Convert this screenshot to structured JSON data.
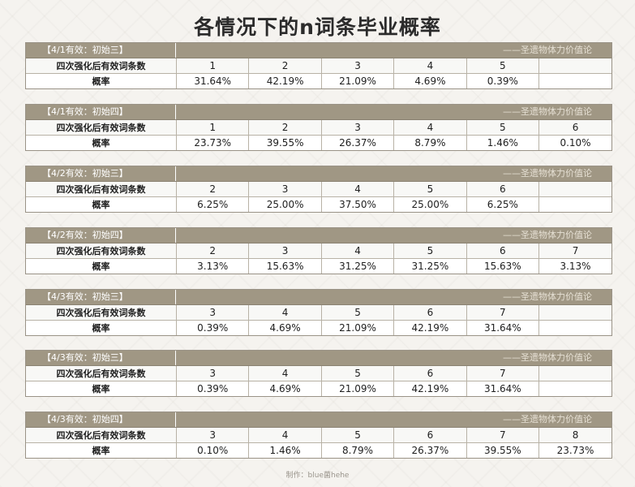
{
  "title": "各情况下的n词条毕业概率",
  "credit": "——圣遗物体力价值论",
  "row_labels": {
    "count": "四次强化后有效词条数",
    "prob": "概率"
  },
  "blocks": [
    {
      "label": "【4/1有效：初始三】",
      "counts": [
        "1",
        "2",
        "3",
        "4",
        "5",
        ""
      ],
      "probs": [
        "31.64%",
        "42.19%",
        "21.09%",
        "4.69%",
        "0.39%",
        ""
      ]
    },
    {
      "label": "【4/1有效：初始四】",
      "counts": [
        "1",
        "2",
        "3",
        "4",
        "5",
        "6"
      ],
      "probs": [
        "23.73%",
        "39.55%",
        "26.37%",
        "8.79%",
        "1.46%",
        "0.10%"
      ]
    },
    {
      "label": "【4/2有效：初始三】",
      "counts": [
        "2",
        "3",
        "4",
        "5",
        "6",
        ""
      ],
      "probs": [
        "6.25%",
        "25.00%",
        "37.50%",
        "25.00%",
        "6.25%",
        ""
      ]
    },
    {
      "label": "【4/2有效：初始四】",
      "counts": [
        "2",
        "3",
        "4",
        "5",
        "6",
        "7"
      ],
      "probs": [
        "3.13%",
        "15.63%",
        "31.25%",
        "31.25%",
        "15.63%",
        "3.13%"
      ]
    },
    {
      "label": "【4/3有效：初始三】",
      "counts": [
        "3",
        "4",
        "5",
        "6",
        "7",
        ""
      ],
      "probs": [
        "0.39%",
        "4.69%",
        "21.09%",
        "42.19%",
        "31.64%",
        ""
      ]
    },
    {
      "label": "【4/3有效：初始三】",
      "counts": [
        "3",
        "4",
        "5",
        "6",
        "7",
        ""
      ],
      "probs": [
        "0.39%",
        "4.69%",
        "21.09%",
        "42.19%",
        "31.64%",
        ""
      ]
    },
    {
      "label": "【4/3有效：初始四】",
      "counts": [
        "3",
        "4",
        "5",
        "6",
        "7",
        "8"
      ],
      "probs": [
        "0.10%",
        "1.46%",
        "8.79%",
        "26.37%",
        "39.55%",
        "23.73%"
      ]
    }
  ],
  "footer": "制作：blue菌hehe"
}
